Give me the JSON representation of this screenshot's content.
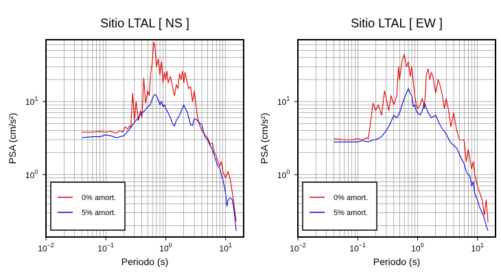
{
  "chart_data": [
    {
      "type": "line",
      "title": "Sitio LTAL [ NS ]",
      "xlabel": "Periodo (s)",
      "ylabel": "PSA (cm/s²)",
      "xscale": "log",
      "yscale": "log",
      "xlim": [
        0.01,
        20
      ],
      "ylim": [
        0.14,
        70
      ],
      "grid": true,
      "legend_position": "bottom-left",
      "x_ticks": [
        {
          "value": 0.01,
          "base": "10",
          "exp": "−2"
        },
        {
          "value": 0.1,
          "base": "10",
          "exp": "−1"
        },
        {
          "value": 1,
          "base": "10",
          "exp": "0"
        },
        {
          "value": 10,
          "base": "10",
          "exp": "1"
        }
      ],
      "y_ticks": [
        {
          "value": 1,
          "base": "10",
          "exp": "0"
        },
        {
          "value": 10,
          "base": "10",
          "exp": "1"
        }
      ],
      "series": [
        {
          "name": "0% amort.",
          "color": "#e00000",
          "x": [
            0.04,
            0.06,
            0.08,
            0.1,
            0.12,
            0.15,
            0.17,
            0.19,
            0.21,
            0.23,
            0.25,
            0.26,
            0.28,
            0.3,
            0.32,
            0.35,
            0.38,
            0.4,
            0.43,
            0.46,
            0.5,
            0.53,
            0.56,
            0.6,
            0.63,
            0.66,
            0.7,
            0.75,
            0.8,
            0.85,
            0.9,
            0.95,
            1.0,
            1.05,
            1.1,
            1.2,
            1.3,
            1.4,
            1.5,
            1.6,
            1.7,
            1.8,
            1.9,
            2.0,
            2.1,
            2.2,
            2.4,
            2.6,
            2.8,
            3.0,
            3.2,
            3.4,
            3.6,
            4.0,
            4.5,
            5.0,
            5.5,
            6.0,
            6.5,
            7.0,
            7.5,
            8.0,
            8.5,
            9.0,
            10.0,
            11.0,
            12.0,
            13.0,
            14.0,
            15.0
          ],
          "y": [
            3.8,
            3.8,
            3.9,
            3.8,
            3.9,
            3.7,
            4.0,
            3.8,
            4.5,
            4.2,
            4.6,
            4.4,
            13.0,
            5.5,
            10.0,
            5.5,
            7.5,
            6.0,
            21.0,
            9.5,
            14.0,
            12.0,
            24.0,
            36.0,
            65.0,
            58.0,
            30.0,
            38.0,
            23.0,
            35.0,
            18.0,
            25.0,
            20.0,
            26.0,
            18.0,
            22.0,
            16.0,
            12.0,
            17.0,
            15.0,
            24.0,
            20.0,
            26.0,
            18.0,
            25.0,
            21.0,
            15.0,
            16.0,
            10.0,
            14.0,
            9.0,
            6.0,
            5.0,
            4.0,
            3.5,
            3.2,
            2.6,
            2.7,
            2.0,
            1.8,
            1.5,
            1.3,
            1.5,
            1.1,
            0.9,
            1.1,
            0.85,
            0.55,
            0.35,
            0.23
          ]
        },
        {
          "name": "5% amort.",
          "color": "#0000e0",
          "x": [
            0.04,
            0.06,
            0.08,
            0.1,
            0.12,
            0.15,
            0.2,
            0.25,
            0.3,
            0.35,
            0.4,
            0.45,
            0.5,
            0.55,
            0.6,
            0.65,
            0.7,
            0.75,
            0.8,
            0.85,
            0.9,
            0.95,
            1.0,
            1.1,
            1.2,
            1.3,
            1.4,
            1.5,
            1.7,
            2.0,
            2.3,
            2.6,
            2.8,
            3.0,
            3.3,
            3.6,
            4.0,
            4.5,
            5.0,
            5.5,
            6.0,
            6.5,
            7.0,
            7.5,
            8.0,
            8.5,
            9.0,
            9.5,
            10.0,
            10.5,
            11.0,
            12.0,
            13.0,
            14.0,
            15.0
          ],
          "y": [
            3.2,
            3.3,
            3.3,
            3.5,
            3.4,
            3.2,
            3.4,
            4.2,
            5.2,
            6.0,
            7.0,
            7.5,
            8.5,
            9.0,
            11.0,
            12.5,
            12.0,
            10.5,
            9.0,
            10.0,
            8.5,
            9.0,
            8.0,
            7.0,
            6.0,
            5.0,
            4.6,
            5.5,
            6.5,
            9.0,
            7.0,
            4.8,
            4.7,
            5.8,
            5.6,
            5.2,
            4.8,
            3.3,
            3.0,
            2.5,
            2.2,
            1.8,
            1.5,
            1.3,
            1.2,
            1.0,
            0.85,
            0.7,
            0.55,
            0.37,
            0.45,
            0.48,
            0.45,
            0.3,
            0.17
          ]
        }
      ]
    },
    {
      "type": "line",
      "title": "Sitio LTAL [ EW ]",
      "xlabel": "Periodo (s)",
      "ylabel": "PSA (cm/s²)",
      "xscale": "log",
      "yscale": "log",
      "xlim": [
        0.01,
        20
      ],
      "ylim": [
        0.14,
        70
      ],
      "grid": true,
      "legend_position": "bottom-left",
      "x_ticks": [
        {
          "value": 0.01,
          "base": "10",
          "exp": "−2"
        },
        {
          "value": 0.1,
          "base": "10",
          "exp": "−1"
        },
        {
          "value": 1,
          "base": "10",
          "exp": "0"
        },
        {
          "value": 10,
          "base": "10",
          "exp": "1"
        }
      ],
      "y_ticks": [
        {
          "value": 1,
          "base": "10",
          "exp": "0"
        },
        {
          "value": 10,
          "base": "10",
          "exp": "1"
        }
      ],
      "series": [
        {
          "name": "0% amort.",
          "color": "#e00000",
          "x": [
            0.04,
            0.06,
            0.08,
            0.1,
            0.12,
            0.14,
            0.15,
            0.16,
            0.18,
            0.2,
            0.22,
            0.25,
            0.28,
            0.3,
            0.33,
            0.36,
            0.4,
            0.45,
            0.48,
            0.5,
            0.55,
            0.6,
            0.65,
            0.7,
            0.75,
            0.8,
            0.85,
            0.9,
            0.95,
            1.0,
            1.1,
            1.2,
            1.3,
            1.4,
            1.5,
            1.6,
            1.7,
            1.8,
            1.9,
            2.0,
            2.2,
            2.4,
            2.6,
            2.8,
            3.0,
            3.3,
            3.6,
            4.0,
            4.5,
            5.0,
            5.5,
            6.0,
            6.5,
            7.0,
            7.5,
            8.0,
            8.5,
            9.0,
            10.0,
            11.0,
            12.0,
            13.0,
            14.0,
            15.0
          ],
          "y": [
            3.1,
            3.0,
            3.0,
            3.1,
            3.0,
            3.2,
            3.1,
            4.5,
            9.5,
            7.5,
            9.0,
            6.5,
            14.0,
            11.0,
            7.5,
            12.0,
            9.0,
            12.0,
            30.0,
            20.0,
            36.0,
            44.0,
            30.0,
            35.0,
            22.0,
            30.0,
            18.0,
            12.0,
            9.0,
            8.0,
            9.0,
            11.0,
            8.0,
            23.0,
            28.0,
            20.0,
            25.0,
            22.0,
            17.0,
            13.0,
            20.0,
            16.0,
            12.0,
            8.0,
            11.0,
            7.5,
            4.5,
            7.0,
            4.0,
            3.0,
            3.0,
            2.9,
            1.5,
            2.2,
            1.6,
            1.2,
            1.5,
            1.0,
            0.7,
            0.55,
            0.45,
            0.28,
            0.45,
            0.22
          ]
        },
        {
          "name": "5% amort.",
          "color": "#0000e0",
          "x": [
            0.04,
            0.06,
            0.08,
            0.1,
            0.12,
            0.15,
            0.18,
            0.2,
            0.25,
            0.3,
            0.35,
            0.4,
            0.45,
            0.5,
            0.55,
            0.6,
            0.65,
            0.7,
            0.75,
            0.8,
            0.85,
            0.9,
            0.95,
            1.0,
            1.1,
            1.2,
            1.3,
            1.5,
            1.7,
            2.0,
            2.3,
            2.6,
            3.0,
            3.5,
            4.0,
            4.5,
            5.0,
            5.5,
            6.0,
            6.5,
            7.0,
            7.5,
            8.0,
            8.5,
            9.0,
            10.0,
            11.0,
            12.0,
            13.0,
            14.0,
            15.0
          ],
          "y": [
            2.8,
            2.8,
            2.8,
            2.8,
            2.9,
            2.8,
            3.0,
            3.0,
            3.3,
            4.0,
            5.0,
            6.5,
            6.0,
            7.0,
            9.0,
            11.0,
            13.0,
            15.0,
            13.0,
            12.0,
            8.5,
            9.0,
            7.5,
            7.0,
            6.5,
            7.5,
            9.5,
            7.0,
            6.0,
            6.5,
            5.0,
            4.2,
            3.6,
            2.8,
            2.5,
            2.3,
            1.9,
            1.6,
            1.4,
            1.1,
            1.0,
            0.95,
            0.7,
            0.8,
            0.55,
            0.45,
            0.35,
            0.3,
            0.25,
            0.2,
            0.17
          ]
        }
      ]
    }
  ]
}
